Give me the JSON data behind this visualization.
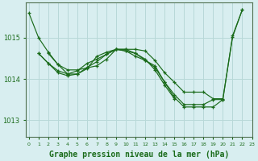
{
  "background_color": "#d8eef0",
  "grid_color": "#b8d8d8",
  "line_color": "#1a6b1a",
  "xlabel": "Graphe pression niveau de la mer (hPa)",
  "yticks": [
    1013,
    1014,
    1015
  ],
  "xlim": [
    -0.3,
    23
  ],
  "ylim": [
    1012.6,
    1015.85
  ],
  "series": [
    {
      "x": [
        0,
        1,
        2,
        3,
        4,
        5,
        6,
        7,
        8,
        9,
        10,
        11,
        12,
        13,
        14,
        15,
        16,
        17,
        18,
        19,
        20,
        21,
        22
      ],
      "y": [
        1015.6,
        1015.0,
        1014.65,
        1014.35,
        1014.22,
        1014.22,
        1014.27,
        1014.32,
        1014.48,
        1014.72,
        1014.72,
        1014.72,
        1014.68,
        1014.45,
        1014.15,
        1013.92,
        1013.68,
        1013.68,
        1013.68,
        1013.52,
        1013.52,
        1015.02,
        1015.68
      ]
    },
    {
      "x": [
        1,
        2,
        3,
        4,
        5,
        6,
        7,
        8,
        9,
        10,
        11,
        12,
        13,
        14,
        15,
        16,
        17,
        18,
        19,
        20,
        21,
        22
      ],
      "y": [
        1014.62,
        1014.38,
        1014.2,
        1014.12,
        1014.2,
        1014.38,
        1014.48,
        1014.6,
        1014.72,
        1014.72,
        1014.62,
        1014.45,
        1014.32,
        1013.92,
        1013.62,
        1013.38,
        1013.38,
        1013.38,
        1013.5,
        1013.5,
        1015.05,
        1015.68
      ]
    },
    {
      "x": [
        1,
        2,
        3,
        4,
        5,
        6,
        7,
        8,
        9,
        10,
        11,
        12,
        13,
        14,
        15,
        16,
        17,
        18,
        19,
        20
      ],
      "y": [
        1014.62,
        1014.38,
        1014.15,
        1014.08,
        1014.12,
        1014.28,
        1014.42,
        1014.6,
        1014.72,
        1014.68,
        1014.55,
        1014.45,
        1014.28,
        1013.92,
        1013.55,
        1013.32,
        1013.32,
        1013.32,
        1013.32,
        1013.5
      ]
    },
    {
      "x": [
        2,
        3,
        4,
        5,
        6,
        7,
        8,
        9,
        10,
        11,
        12,
        13,
        14,
        15
      ],
      "y": [
        1014.62,
        1014.35,
        1014.12,
        1014.12,
        1014.25,
        1014.55,
        1014.65,
        1014.72,
        1014.68,
        1014.62,
        1014.48,
        1014.22,
        1013.85,
        1013.52
      ]
    }
  ]
}
